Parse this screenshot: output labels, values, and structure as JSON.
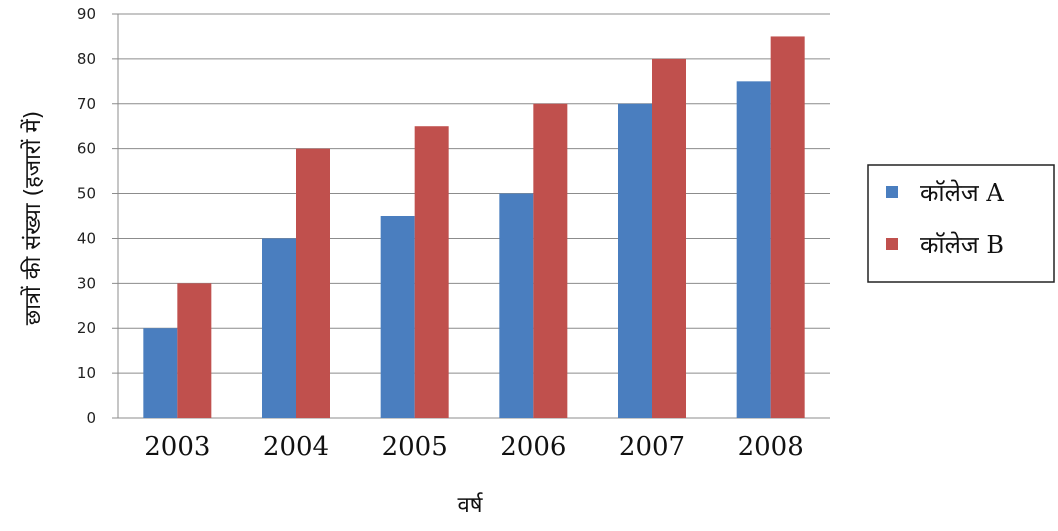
{
  "chart_data": {
    "type": "bar",
    "categories": [
      "2003",
      "2004",
      "2005",
      "2006",
      "2007",
      "2008"
    ],
    "series": [
      {
        "name": "कॉलेज A",
        "color": "#4a7ebf",
        "values": [
          20,
          40,
          45,
          50,
          70,
          75
        ]
      },
      {
        "name": "कॉलेज B",
        "color": "#c0504d",
        "values": [
          30,
          60,
          65,
          70,
          80,
          85
        ]
      }
    ],
    "xlabel": "वर्ष",
    "ylabel": "छात्रों की संख्या (हजारों में)",
    "ylim": [
      0,
      90
    ],
    "yticks": [
      0,
      10,
      20,
      30,
      40,
      50,
      60,
      70,
      80,
      90
    ],
    "grid": true,
    "legend_position": "right"
  }
}
